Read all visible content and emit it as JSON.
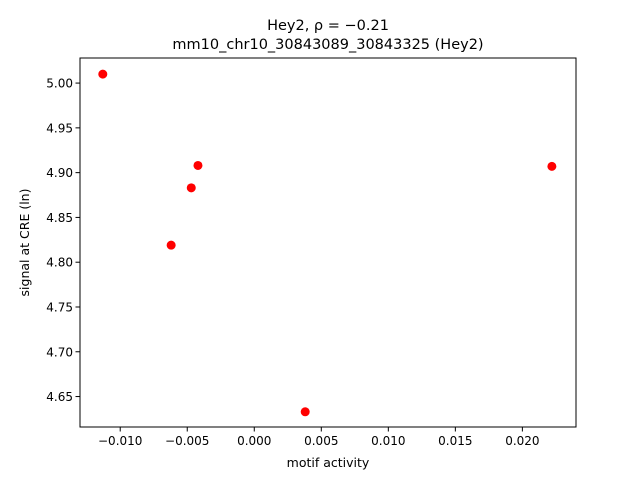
{
  "chart_data": {
    "type": "scatter",
    "title_line1": "Hey2, ρ = −0.21",
    "title_line2": "mm10_chr10_30843089_30843325 (Hey2)",
    "xlabel": "motif activity",
    "ylabel": "signal at CRE (ln)",
    "xlim": [
      -0.013,
      0.024
    ],
    "ylim": [
      4.616,
      5.028
    ],
    "x_ticks": [
      -0.01,
      -0.005,
      0.0,
      0.005,
      0.01,
      0.015,
      0.02
    ],
    "x_tick_labels": [
      "−0.010",
      "−0.005",
      "0.000",
      "0.005",
      "0.010",
      "0.015",
      "0.020"
    ],
    "y_ticks": [
      4.65,
      4.7,
      4.75,
      4.8,
      4.85,
      4.9,
      4.95,
      5.0
    ],
    "y_tick_labels": [
      "4.65",
      "4.70",
      "4.75",
      "4.80",
      "4.85",
      "4.90",
      "4.95",
      "5.00"
    ],
    "grid": false,
    "marker_color": "#ff0000",
    "points": [
      {
        "x": -0.0113,
        "y": 5.01
      },
      {
        "x": -0.0062,
        "y": 4.819
      },
      {
        "x": -0.0047,
        "y": 4.883
      },
      {
        "x": -0.0042,
        "y": 4.908
      },
      {
        "x": 0.0038,
        "y": 4.633
      },
      {
        "x": 0.0222,
        "y": 4.907
      }
    ]
  }
}
